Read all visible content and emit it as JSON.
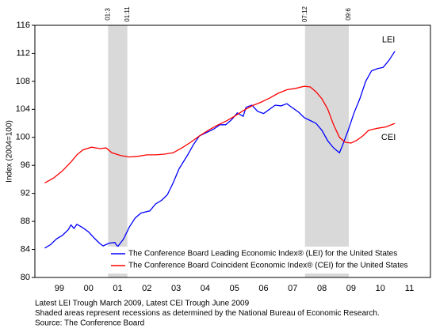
{
  "chart_data": {
    "type": "line",
    "y_label": "Index (2004=100)",
    "xlim": [
      1998.66,
      2012.22
    ],
    "ylim": [
      80,
      116
    ],
    "yticks": [
      80,
      84,
      88,
      92,
      96,
      100,
      104,
      108,
      112,
      116
    ],
    "xticks": [
      {
        "value": 1999.5,
        "label": "99"
      },
      {
        "value": 2000.5,
        "label": "00"
      },
      {
        "value": 2001.5,
        "label": "01"
      },
      {
        "value": 2002.5,
        "label": "02"
      },
      {
        "value": 2003.5,
        "label": "03"
      },
      {
        "value": 2004.5,
        "label": "04"
      },
      {
        "value": 2005.5,
        "label": "05"
      },
      {
        "value": 2006.5,
        "label": "06"
      },
      {
        "value": 2007.5,
        "label": "07"
      },
      {
        "value": 2008.5,
        "label": "08"
      },
      {
        "value": 2009.5,
        "label": "09"
      },
      {
        "value": 2010.5,
        "label": "10"
      },
      {
        "value": 2011.5,
        "label": "11"
      }
    ],
    "grid": false,
    "shaded_regions": [
      {
        "start": 2001.17,
        "end": 2001.83,
        "start_label": "01:3",
        "end_label": "01:11",
        "color": "#d9d9d9"
      },
      {
        "start": 2007.92,
        "end": 2009.42,
        "start_label": "07:12",
        "end_label": "09:6",
        "color": "#d9d9d9"
      }
    ],
    "annotations": [
      "LEI",
      "CEI"
    ],
    "legend_position": "bottom-right",
    "series": [
      {
        "name": "The Conference Board Leading Economic Index® (LEI) for the United States",
        "color": "#0000ff",
        "x": [
          1999.0,
          1999.2,
          1999.4,
          1999.6,
          1999.8,
          1999.9,
          2000.0,
          2000.1,
          2000.3,
          2000.5,
          2000.7,
          2000.9,
          2001.0,
          2001.2,
          2001.4,
          2001.5,
          2001.7,
          2001.9,
          2002.1,
          2002.3,
          2002.6,
          2002.8,
          2003.0,
          2003.2,
          2003.4,
          2003.6,
          2003.9,
          2004.1,
          2004.3,
          2004.6,
          2004.8,
          2005.0,
          2005.2,
          2005.4,
          2005.6,
          2005.8,
          2005.9,
          2006.1,
          2006.3,
          2006.5,
          2006.7,
          2006.9,
          2007.1,
          2007.3,
          2007.5,
          2007.7,
          2007.9,
          2008.1,
          2008.3,
          2008.5,
          2008.7,
          2008.9,
          2009.1,
          2009.2,
          2009.4,
          2009.6,
          2009.8,
          2010.0,
          2010.2,
          2010.4,
          2010.6,
          2010.8,
          2011.0
        ],
        "values": [
          84.2,
          84.7,
          85.5,
          86.0,
          86.8,
          87.5,
          87.0,
          87.6,
          87.1,
          86.5,
          85.6,
          84.8,
          84.5,
          84.9,
          85.0,
          84.4,
          85.5,
          87.2,
          88.5,
          89.2,
          89.5,
          90.5,
          91.0,
          91.8,
          93.5,
          95.5,
          97.5,
          99.0,
          100.2,
          100.8,
          101.2,
          101.8,
          101.8,
          102.5,
          103.5,
          103.0,
          104.3,
          104.6,
          103.7,
          103.4,
          104.0,
          104.6,
          104.5,
          104.8,
          104.2,
          103.6,
          102.8,
          102.4,
          102.0,
          101.0,
          99.5,
          98.5,
          97.8,
          98.8,
          101.0,
          103.5,
          105.5,
          108.0,
          109.5,
          109.8,
          110.0,
          111.0,
          112.3
        ]
      },
      {
        "name": "The Conference Board Coincident Economic Index® (CEI) for the United States",
        "color": "#ff0000",
        "x": [
          1999.0,
          1999.3,
          1999.6,
          1999.9,
          2000.1,
          2000.3,
          2000.6,
          2000.9,
          2001.1,
          2001.3,
          2001.6,
          2001.9,
          2002.2,
          2002.5,
          2002.8,
          2003.1,
          2003.4,
          2003.7,
          2004.0,
          2004.3,
          2004.6,
          2004.9,
          2005.2,
          2005.5,
          2005.8,
          2006.1,
          2006.4,
          2006.7,
          2007.0,
          2007.3,
          2007.6,
          2007.9,
          2008.1,
          2008.3,
          2008.5,
          2008.7,
          2008.9,
          2009.1,
          2009.3,
          2009.5,
          2009.7,
          2009.9,
          2010.1,
          2010.4,
          2010.7,
          2011.0
        ],
        "values": [
          93.5,
          94.2,
          95.2,
          96.5,
          97.5,
          98.2,
          98.6,
          98.4,
          98.5,
          97.8,
          97.4,
          97.2,
          97.3,
          97.5,
          97.5,
          97.6,
          97.8,
          98.5,
          99.3,
          100.2,
          101.0,
          101.7,
          102.3,
          103.0,
          103.8,
          104.5,
          105.0,
          105.6,
          106.3,
          106.8,
          107.0,
          107.3,
          107.2,
          106.5,
          105.5,
          104.0,
          101.8,
          100.0,
          99.3,
          99.2,
          99.6,
          100.2,
          101.0,
          101.3,
          101.5,
          102.0
        ]
      }
    ],
    "footnotes": [
      "Latest LEI Trough March 2009, Latest CEI Trough June 2009",
      "Shaded areas represent recessions as determined by the National Bureau of Economic Research.",
      "Source: The Conference Board"
    ]
  }
}
